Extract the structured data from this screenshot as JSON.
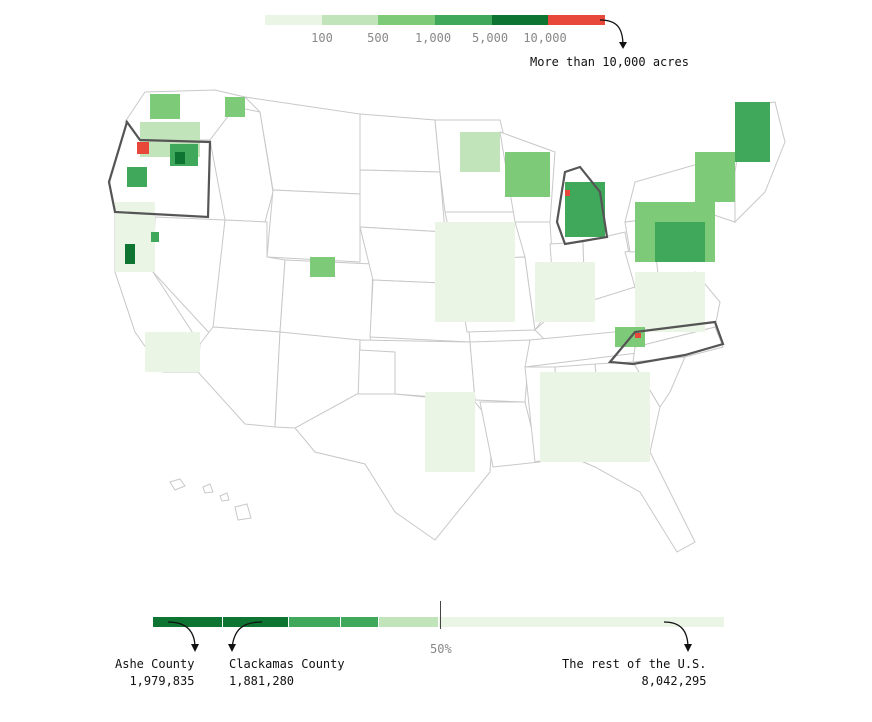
{
  "legend": {
    "colors": [
      "#eaf5e6",
      "#c2e4bb",
      "#7dcb78",
      "#3fa85a",
      "#0e7431",
      "#e8483a"
    ],
    "ticks": [
      "100",
      "500",
      "1,000",
      "5,000",
      "10,000"
    ],
    "callout": "More than 10,000 acres"
  },
  "map": {
    "fill_outline": "#bbbbbb",
    "highlight_outline": "#555555",
    "highlighted_states": [
      "Oregon",
      "Michigan",
      "North Carolina"
    ]
  },
  "bottom": {
    "half_label": "50%",
    "counties": [
      {
        "name": "Ashe County",
        "value": "1,979,835"
      },
      {
        "name": "Clackamas County",
        "value": "1,881,280"
      }
    ],
    "rest": {
      "name": "The rest of the U.S.",
      "value": "8,042,295"
    }
  }
}
